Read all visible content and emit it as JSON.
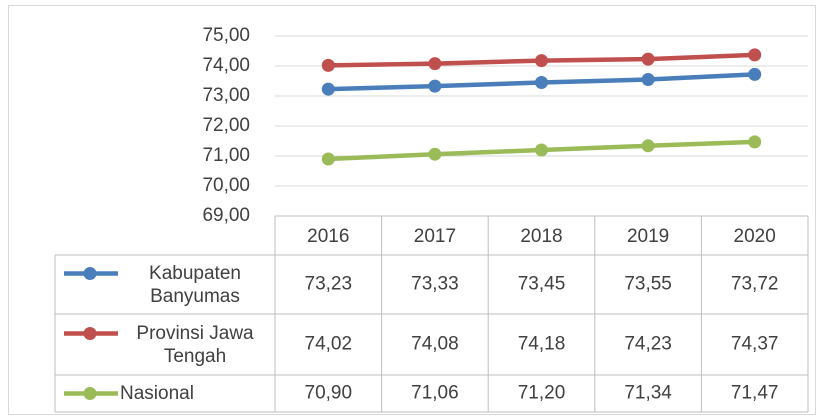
{
  "chart_data": {
    "type": "line",
    "categories": [
      "2016",
      "2017",
      "2018",
      "2019",
      "2020"
    ],
    "ylim": [
      69,
      75
    ],
    "yticks": [
      {
        "value": 69,
        "label": "69,00"
      },
      {
        "value": 70,
        "label": "70,00"
      },
      {
        "value": 71,
        "label": "71,00"
      },
      {
        "value": 72,
        "label": "72,00"
      },
      {
        "value": 73,
        "label": "73,00"
      },
      {
        "value": 74,
        "label": "74,00"
      },
      {
        "value": 75,
        "label": "75,00"
      }
    ],
    "grid": true,
    "legend": "table",
    "series": [
      {
        "name": "Kabupaten Banyumas",
        "color": "#4a7ebb",
        "values": [
          73.23,
          73.33,
          73.45,
          73.55,
          73.72
        ],
        "value_labels": [
          "73,23",
          "73,33",
          "73,45",
          "73,55",
          "73,72"
        ]
      },
      {
        "name": "Provinsi Jawa Tengah",
        "color": "#c0504d",
        "values": [
          74.02,
          74.08,
          74.18,
          74.23,
          74.37
        ],
        "value_labels": [
          "74,02",
          "74,08",
          "74,18",
          "74,23",
          "74,37"
        ]
      },
      {
        "name": "Nasional",
        "color": "#9bbb59",
        "values": [
          70.9,
          71.06,
          71.2,
          71.34,
          71.47
        ],
        "value_labels": [
          "70,90",
          "71,06",
          "71,20",
          "71,34",
          "71,47"
        ]
      }
    ]
  }
}
